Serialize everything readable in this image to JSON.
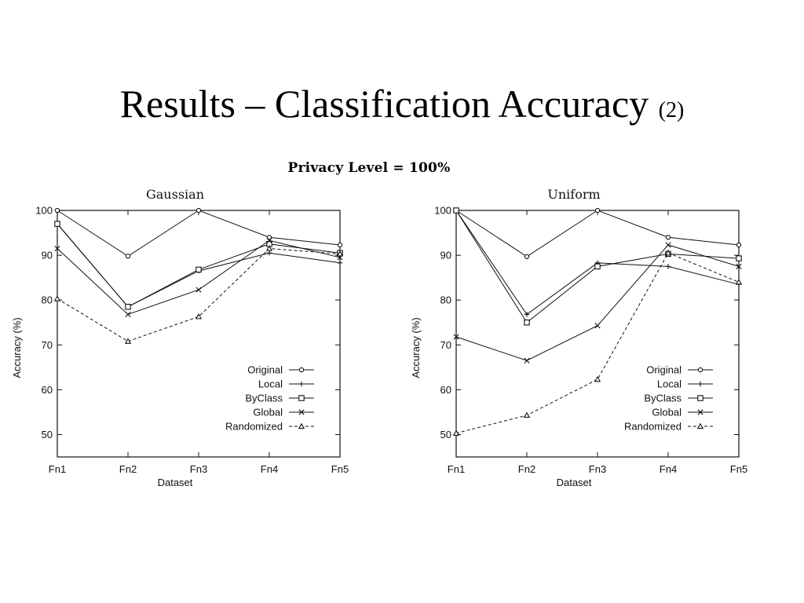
{
  "slide": {
    "title": "Results – Classification Accuracy",
    "title_suffix": "(2)"
  },
  "figure_title": "Privacy Level = 100%",
  "chart_data": [
    {
      "type": "line",
      "title": "Gaussian",
      "xlabel": "Dataset",
      "ylabel": "Accuracy (%)",
      "categories": [
        "Fn1",
        "Fn2",
        "Fn3",
        "Fn4",
        "Fn5"
      ],
      "ylim": [
        45,
        100
      ],
      "yticks": [
        50,
        60,
        70,
        80,
        90,
        100
      ],
      "grid": false,
      "legend_position": "bottom-right",
      "series": [
        {
          "name": "Original",
          "marker": "circle",
          "dash": "solid",
          "values": [
            100,
            89.8,
            100,
            94,
            92.3
          ]
        },
        {
          "name": "Local",
          "marker": "plus",
          "dash": "solid",
          "values": [
            97,
            78.5,
            86.5,
            90.5,
            88.3
          ]
        },
        {
          "name": "ByClass",
          "marker": "square",
          "dash": "solid",
          "values": [
            97,
            78.5,
            86.8,
            92.5,
            90.5
          ]
        },
        {
          "name": "Global",
          "marker": "x",
          "dash": "solid",
          "values": [
            91.5,
            76.8,
            82.3,
            93.3,
            89.5
          ]
        },
        {
          "name": "Randomized",
          "marker": "triangle",
          "dash": "dashed",
          "values": [
            80.3,
            70.8,
            76.3,
            91.5,
            90.3
          ]
        }
      ]
    },
    {
      "type": "line",
      "title": "Uniform",
      "xlabel": "Dataset",
      "ylabel": "Accuracy (%)",
      "categories": [
        "Fn1",
        "Fn2",
        "Fn3",
        "Fn4",
        "Fn5"
      ],
      "ylim": [
        45,
        100
      ],
      "yticks": [
        50,
        60,
        70,
        80,
        90,
        100
      ],
      "grid": false,
      "legend_position": "bottom-right",
      "series": [
        {
          "name": "Original",
          "marker": "circle",
          "dash": "solid",
          "values": [
            100,
            89.7,
            100,
            94,
            92.3
          ]
        },
        {
          "name": "Local",
          "marker": "plus",
          "dash": "solid",
          "values": [
            100,
            76.8,
            88.3,
            87.5,
            83.5
          ]
        },
        {
          "name": "ByClass",
          "marker": "square",
          "dash": "solid",
          "values": [
            100,
            75,
            87.5,
            90.3,
            89.3
          ]
        },
        {
          "name": "Global",
          "marker": "x",
          "dash": "solid",
          "values": [
            71.8,
            66.5,
            74.3,
            92.3,
            87.5
          ]
        },
        {
          "name": "Randomized",
          "marker": "triangle",
          "dash": "dashed",
          "values": [
            50.3,
            54.3,
            62.3,
            90.5,
            84
          ]
        }
      ]
    }
  ]
}
